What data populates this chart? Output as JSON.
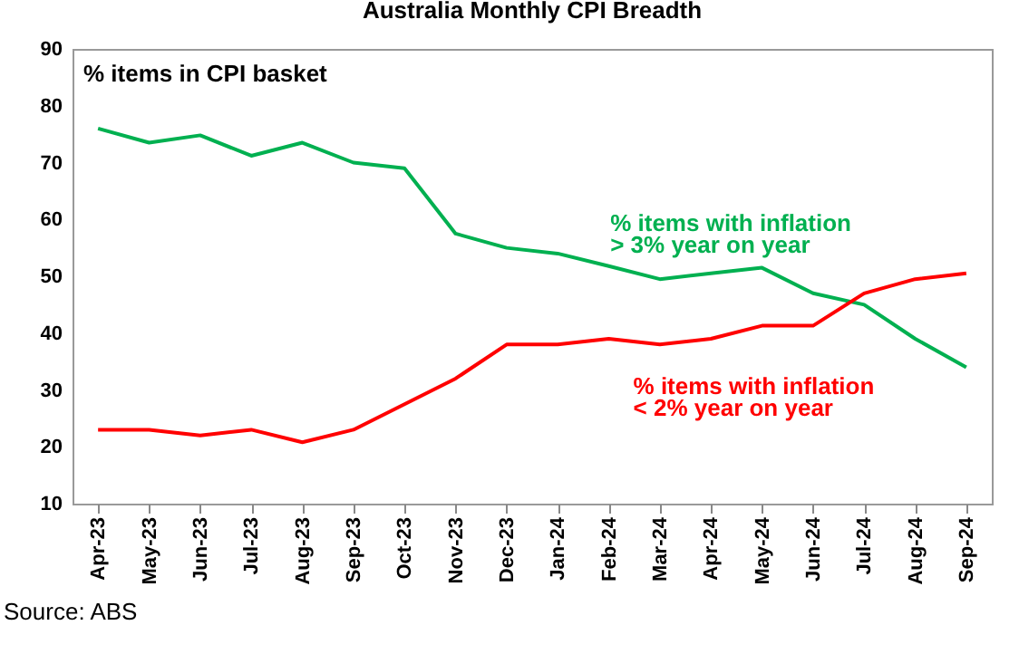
{
  "chart_data": {
    "type": "line",
    "title": "Australia Monthly CPI Breadth",
    "ylabel": "% items in CPI basket",
    "categories": [
      "Apr-23",
      "May-23",
      "Jun-23",
      "Jul-23",
      "Aug-23",
      "Sep-23",
      "Oct-23",
      "Nov-23",
      "Dec-23",
      "Jan-24",
      "Feb-24",
      "Mar-24",
      "Apr-24",
      "May-24",
      "Jun-24",
      "Jul-24",
      "Aug-24",
      "Sep-24"
    ],
    "series": [
      {
        "name": "% items with inflation\n> 3% year on year",
        "color": "#00b050",
        "values": [
          76,
          73.5,
          74.8,
          71.2,
          73.5,
          70,
          69,
          57.5,
          55,
          54,
          51.8,
          49.5,
          50.5,
          51.5,
          47,
          45,
          39,
          34
        ]
      },
      {
        "name": "% items with inflation\n< 2% year on year",
        "color": "#ff0000",
        "values": [
          23,
          23,
          22,
          23,
          20.8,
          23,
          27.5,
          32,
          38,
          38,
          39,
          38,
          39,
          41.3,
          41.3,
          47,
          49.5,
          50.5
        ]
      }
    ],
    "ylim": [
      10,
      90
    ],
    "yticks": [
      10,
      20,
      30,
      40,
      50,
      60,
      70,
      80,
      90
    ],
    "grid": false,
    "legend": false,
    "marker": "none",
    "line_style": "solid",
    "annotations": [
      "Source: ABS"
    ]
  }
}
